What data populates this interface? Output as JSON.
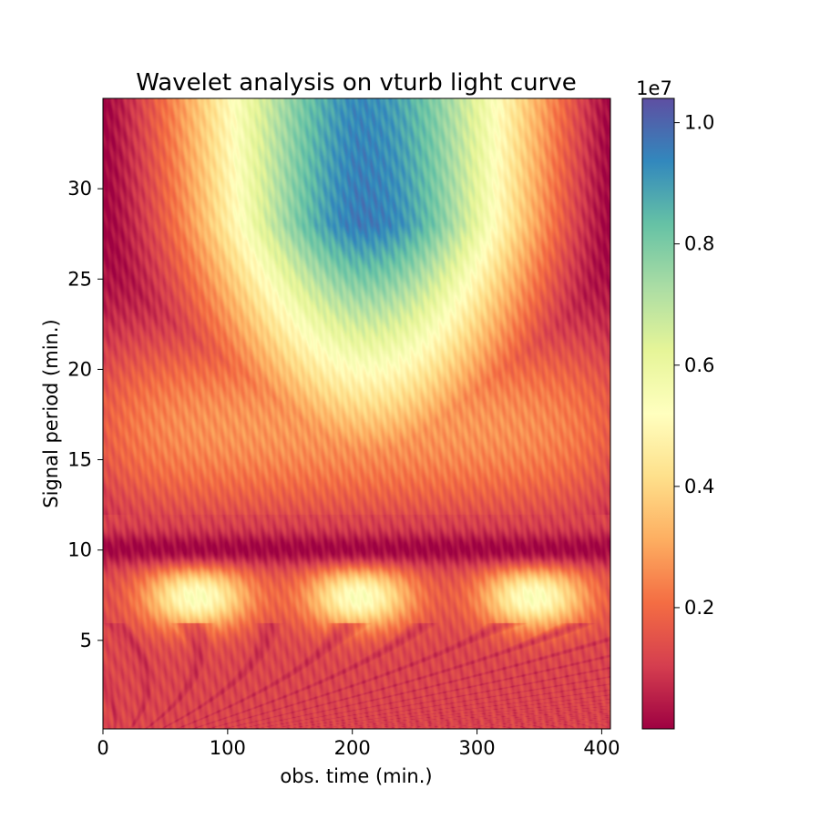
{
  "chart_data": {
    "type": "heatmap",
    "title": "Wavelet analysis on vturb light curve",
    "xlabel": "obs. time (min.)",
    "ylabel": "Signal period (min.)",
    "xlim": [
      0,
      407
    ],
    "ylim": [
      0.1,
      35
    ],
    "xticks": [
      0,
      100,
      200,
      300,
      400
    ],
    "yticks": [
      5,
      10,
      15,
      20,
      25,
      30
    ],
    "colorbar": {
      "label": "",
      "multiplier": "1e7",
      "range": [
        0.0,
        1.04
      ],
      "ticks": [
        0.2,
        0.4,
        0.6,
        0.8,
        1.0
      ],
      "tick_labels": [
        "0.2",
        "0.4",
        "0.6",
        "0.8",
        "1.0"
      ],
      "colormap": "Spectral",
      "stops": [
        "#9e0142",
        "#d53e4f",
        "#f46d43",
        "#fdae61",
        "#fee08b",
        "#ffffbf",
        "#e6f598",
        "#abdda4",
        "#66c2a5",
        "#3288bd",
        "#5e4fa2"
      ]
    },
    "features": [
      {
        "name": "high-power dome",
        "x_range": [
          130,
          310
        ],
        "period_range": [
          18,
          35
        ],
        "peak_value": 1.0
      },
      {
        "name": "warm blob",
        "x": 75,
        "period": 7.5,
        "value": 0.4
      },
      {
        "name": "warm blob",
        "x": 205,
        "period": 7.5,
        "value": 0.42
      },
      {
        "name": "warm blob",
        "x": 345,
        "period": 7.5,
        "value": 0.4
      },
      {
        "name": "low-power trough",
        "period": 10,
        "value": 0.03
      }
    ],
    "grid": false,
    "legend": "none"
  }
}
